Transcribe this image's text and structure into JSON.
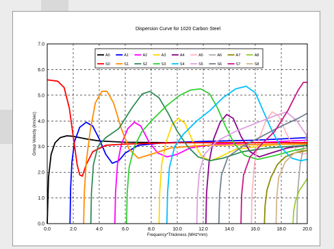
{
  "window": {
    "tabs": []
  },
  "chart_data": {
    "type": "line",
    "title": "Dispersion Curve for 1020 Carbon Steel",
    "xlabel": "Frequency*Thickness (MHz*mm)",
    "ylabel": "Group Velocity (km/sec)",
    "xlim": [
      0,
      20
    ],
    "ylim": [
      0,
      7
    ],
    "xticks": [
      "0.0",
      "2.0",
      "4.0",
      "6.0",
      "8.0",
      "10.0",
      "12.0",
      "14.0",
      "16.0",
      "18.0",
      "20.0"
    ],
    "yticks": [
      "0.0",
      "1.0",
      "2.0",
      "3.0",
      "4.0",
      "5.0",
      "6.0",
      "7.0"
    ],
    "grid": "dashed",
    "legend_position": "top",
    "series": [
      {
        "name": "A0",
        "color": "#000000",
        "points": [
          [
            0.0,
            0.0
          ],
          [
            0.1,
            1.8
          ],
          [
            0.3,
            2.7
          ],
          [
            0.6,
            3.15
          ],
          [
            1.0,
            3.35
          ],
          [
            1.5,
            3.42
          ],
          [
            2.0,
            3.4
          ],
          [
            3.0,
            3.3
          ],
          [
            4.0,
            3.22
          ],
          [
            6.0,
            3.17
          ],
          [
            10.0,
            3.15
          ],
          [
            20.0,
            3.15
          ]
        ]
      },
      {
        "name": "A1",
        "color": "#0000ff",
        "points": [
          [
            1.75,
            0.0
          ],
          [
            1.8,
            1.4
          ],
          [
            1.9,
            2.4
          ],
          [
            2.1,
            3.2
          ],
          [
            2.5,
            3.75
          ],
          [
            3.0,
            3.95
          ],
          [
            3.5,
            3.8
          ],
          [
            4.0,
            3.3
          ],
          [
            4.5,
            2.7
          ],
          [
            5.0,
            2.35
          ],
          [
            5.5,
            2.45
          ],
          [
            6.0,
            2.75
          ],
          [
            7.0,
            3.05
          ],
          [
            9.0,
            3.15
          ],
          [
            12.0,
            3.2
          ],
          [
            16.0,
            3.25
          ],
          [
            20.0,
            3.35
          ]
        ]
      },
      {
        "name": "A2",
        "color": "#ff00ff",
        "points": [
          [
            5.2,
            0.0
          ],
          [
            5.25,
            1.2
          ],
          [
            5.4,
            2.3
          ],
          [
            5.7,
            3.1
          ],
          [
            6.2,
            3.7
          ],
          [
            6.7,
            3.95
          ],
          [
            7.2,
            3.8
          ],
          [
            7.8,
            3.2
          ],
          [
            8.5,
            2.75
          ],
          [
            9.2,
            2.6
          ],
          [
            10.0,
            2.7
          ],
          [
            11.0,
            2.95
          ],
          [
            13.0,
            3.1
          ],
          [
            16.0,
            3.15
          ],
          [
            20.0,
            3.25
          ]
        ]
      },
      {
        "name": "A3",
        "color": "#ffd700",
        "points": [
          [
            8.6,
            0.0
          ],
          [
            8.65,
            1.2
          ],
          [
            8.8,
            2.3
          ],
          [
            9.1,
            3.1
          ],
          [
            9.6,
            3.85
          ],
          [
            10.1,
            4.1
          ],
          [
            10.6,
            3.9
          ],
          [
            11.2,
            3.2
          ],
          [
            11.9,
            2.6
          ],
          [
            12.6,
            2.45
          ],
          [
            13.5,
            2.65
          ],
          [
            14.5,
            2.9
          ],
          [
            17.0,
            3.05
          ],
          [
            20.0,
            3.15
          ]
        ]
      },
      {
        "name": "A4",
        "color": "#8b008b",
        "points": [
          [
            12.2,
            0.0
          ],
          [
            12.25,
            1.2
          ],
          [
            12.45,
            2.4
          ],
          [
            12.8,
            3.3
          ],
          [
            13.3,
            3.95
          ],
          [
            13.8,
            4.25
          ],
          [
            14.3,
            4.1
          ],
          [
            14.9,
            3.4
          ],
          [
            15.6,
            2.8
          ],
          [
            16.3,
            2.6
          ],
          [
            17.2,
            2.75
          ],
          [
            18.5,
            2.95
          ],
          [
            20.0,
            3.05
          ]
        ]
      },
      {
        "name": "A5",
        "color": "#ffb6c1",
        "points": [
          [
            15.7,
            0.0
          ],
          [
            15.75,
            1.2
          ],
          [
            15.95,
            2.4
          ],
          [
            16.3,
            3.3
          ],
          [
            16.8,
            4.0
          ],
          [
            17.3,
            4.35
          ],
          [
            17.8,
            4.2
          ],
          [
            18.4,
            3.5
          ],
          [
            19.1,
            2.9
          ],
          [
            19.6,
            2.7
          ],
          [
            20.0,
            2.75
          ]
        ]
      },
      {
        "name": "A6",
        "color": "#a9a9a9",
        "points": [
          [
            19.2,
            0.0
          ],
          [
            19.25,
            1.2
          ],
          [
            19.45,
            2.3
          ],
          [
            19.75,
            3.1
          ],
          [
            20.0,
            3.5
          ]
        ]
      },
      {
        "name": "A7",
        "color": "#8b8b00",
        "points": [
          [
            16.7,
            0.0
          ],
          [
            16.75,
            0.7
          ],
          [
            16.9,
            1.3
          ],
          [
            17.2,
            1.8
          ],
          [
            17.7,
            2.3
          ],
          [
            18.3,
            2.6
          ],
          [
            19.0,
            2.75
          ],
          [
            20.0,
            2.85
          ]
        ]
      },
      {
        "name": "A8",
        "color": "#9acd32",
        "points": [
          [
            18.9,
            0.0
          ],
          [
            18.95,
            0.5
          ],
          [
            19.1,
            0.9
          ],
          [
            19.4,
            1.3
          ],
          [
            19.8,
            1.6
          ],
          [
            20.0,
            1.75
          ]
        ]
      },
      {
        "name": "S0",
        "color": "#ff0000",
        "points": [
          [
            0.0,
            5.6
          ],
          [
            0.8,
            5.55
          ],
          [
            1.3,
            5.3
          ],
          [
            1.7,
            4.5
          ],
          [
            2.0,
            3.4
          ],
          [
            2.3,
            2.3
          ],
          [
            2.5,
            1.9
          ],
          [
            2.7,
            1.85
          ],
          [
            3.0,
            2.3
          ],
          [
            3.5,
            2.8
          ],
          [
            4.5,
            3.05
          ],
          [
            6.0,
            3.1
          ],
          [
            10.0,
            3.15
          ],
          [
            20.0,
            3.15
          ]
        ]
      },
      {
        "name": "S1",
        "color": "#ff8c00",
        "points": [
          [
            2.8,
            0.0
          ],
          [
            2.85,
            1.2
          ],
          [
            3.0,
            2.4
          ],
          [
            3.3,
            3.6
          ],
          [
            3.7,
            4.7
          ],
          [
            4.2,
            5.15
          ],
          [
            4.6,
            5.15
          ],
          [
            5.1,
            4.7
          ],
          [
            5.7,
            3.7
          ],
          [
            6.3,
            2.9
          ],
          [
            7.0,
            2.55
          ],
          [
            8.0,
            2.7
          ],
          [
            9.5,
            2.95
          ],
          [
            12.0,
            3.05
          ],
          [
            20.0,
            3.1
          ]
        ]
      },
      {
        "name": "S2",
        "color": "#2e8b57",
        "points": [
          [
            3.35,
            0.0
          ],
          [
            3.4,
            1.2
          ],
          [
            3.55,
            2.3
          ],
          [
            3.9,
            3.0
          ],
          [
            4.5,
            3.35
          ],
          [
            5.5,
            3.7
          ],
          [
            6.5,
            4.5
          ],
          [
            7.3,
            5.05
          ],
          [
            7.9,
            5.15
          ],
          [
            8.6,
            4.9
          ],
          [
            9.3,
            4.3
          ],
          [
            10.0,
            3.6
          ],
          [
            10.8,
            3.0
          ],
          [
            11.6,
            2.6
          ],
          [
            12.5,
            2.45
          ],
          [
            13.5,
            2.55
          ],
          [
            15.0,
            2.8
          ],
          [
            17.0,
            2.95
          ],
          [
            20.0,
            3.05
          ]
        ]
      },
      {
        "name": "S3",
        "color": "#32cd32",
        "points": [
          [
            6.1,
            0.0
          ],
          [
            6.15,
            1.2
          ],
          [
            6.3,
            2.2
          ],
          [
            6.7,
            3.0
          ],
          [
            7.3,
            3.6
          ],
          [
            8.2,
            4.1
          ],
          [
            9.2,
            4.6
          ],
          [
            10.2,
            5.0
          ],
          [
            11.0,
            5.2
          ],
          [
            11.8,
            5.25
          ],
          [
            12.5,
            5.05
          ],
          [
            13.1,
            4.5
          ],
          [
            13.7,
            3.8
          ],
          [
            14.4,
            3.1
          ],
          [
            15.2,
            2.65
          ],
          [
            16.2,
            2.5
          ],
          [
            17.5,
            2.65
          ],
          [
            19.0,
            2.85
          ],
          [
            20.0,
            2.95
          ]
        ]
      },
      {
        "name": "S4",
        "color": "#00bfff",
        "points": [
          [
            9.2,
            0.0
          ],
          [
            9.25,
            1.2
          ],
          [
            9.4,
            2.2
          ],
          [
            9.8,
            3.0
          ],
          [
            10.5,
            3.5
          ],
          [
            11.5,
            4.0
          ],
          [
            12.5,
            4.4
          ],
          [
            13.5,
            4.9
          ],
          [
            14.5,
            5.25
          ],
          [
            15.3,
            5.35
          ],
          [
            16.0,
            5.1
          ],
          [
            16.6,
            4.4
          ],
          [
            17.3,
            3.6
          ],
          [
            18.0,
            2.95
          ],
          [
            18.8,
            2.55
          ],
          [
            19.5,
            2.45
          ],
          [
            20.0,
            2.5
          ]
        ]
      },
      {
        "name": "S5",
        "color": "#dda0dd",
        "points": [
          [
            11.5,
            0.0
          ],
          [
            11.55,
            1.1
          ],
          [
            11.7,
            2.0
          ],
          [
            12.1,
            2.7
          ],
          [
            13.0,
            3.2
          ],
          [
            14.5,
            3.6
          ],
          [
            16.0,
            3.9
          ],
          [
            17.5,
            4.2
          ],
          [
            18.4,
            4.35
          ],
          [
            19.2,
            4.0
          ],
          [
            20.0,
            3.4
          ]
        ]
      },
      {
        "name": "S6",
        "color": "#708090",
        "points": [
          [
            13.2,
            0.0
          ],
          [
            13.25,
            1.1
          ],
          [
            13.4,
            1.9
          ],
          [
            13.9,
            2.6
          ],
          [
            15.0,
            3.0
          ],
          [
            16.5,
            3.4
          ],
          [
            18.0,
            3.8
          ],
          [
            19.3,
            4.1
          ],
          [
            20.0,
            4.3
          ]
        ]
      },
      {
        "name": "S7",
        "color": "#c71585",
        "points": [
          [
            14.9,
            0.0
          ],
          [
            14.95,
            1.1
          ],
          [
            15.1,
            1.9
          ],
          [
            15.6,
            2.6
          ],
          [
            16.5,
            3.1
          ],
          [
            17.5,
            3.6
          ],
          [
            18.5,
            4.4
          ],
          [
            19.3,
            5.2
          ],
          [
            19.7,
            5.5
          ],
          [
            20.0,
            5.5
          ]
        ]
      },
      {
        "name": "S8",
        "color": "#d2b48c",
        "points": [
          [
            17.6,
            0.0
          ],
          [
            17.65,
            1.0
          ],
          [
            17.8,
            1.8
          ],
          [
            18.3,
            2.4
          ],
          [
            19.0,
            2.75
          ],
          [
            20.0,
            2.95
          ]
        ]
      }
    ]
  }
}
